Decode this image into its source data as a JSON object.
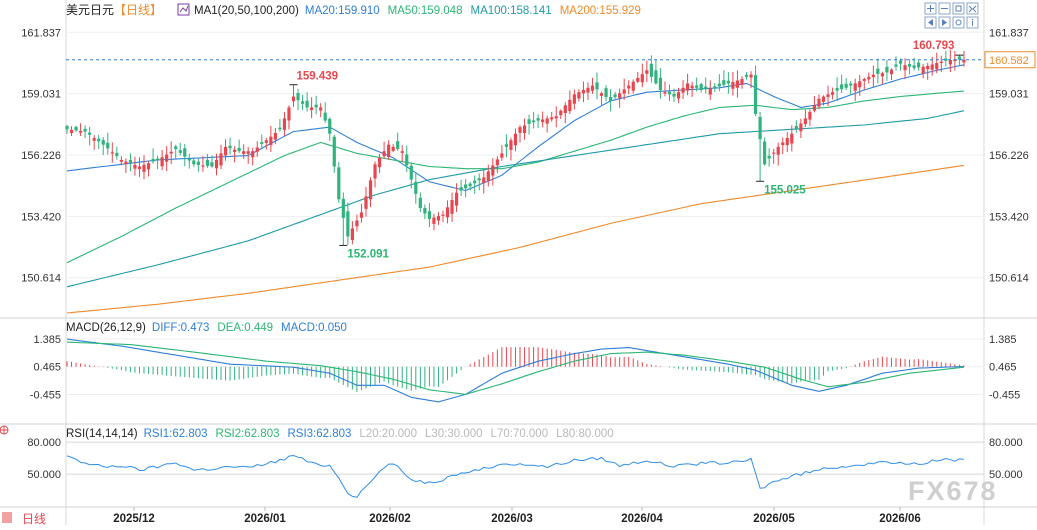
{
  "colors": {
    "up": "#e8464f",
    "down": "#31b37e",
    "ma20": "#2f7fd6",
    "ma50": "#2bb673",
    "ma100": "#1e9aa8",
    "ma200": "#ee8a2b",
    "diff": "#2f7fd6",
    "dea": "#2bb673",
    "rsi": "#2f8fe8",
    "label_red": "#e8464f",
    "label_green": "#2bb673",
    "axis_text": "#333333",
    "title_blue": "#2f7fd6",
    "title_orange": "#ee8a2b"
  },
  "header": {
    "symbol": "美元日元",
    "period": "【日线】",
    "ma_name": "MA1(20,50,100,200)",
    "ma20_label": "MA20:159.910",
    "ma50_label": "MA50:159.048",
    "ma100_label": "MA100:158.141",
    "ma200_label": "MA200:155.929",
    "toolbar_icons": [
      "zoom-in-icon",
      "zoom-out-icon",
      "fit-screen-icon",
      "expand-icon",
      "shift-left-icon",
      "shift-right-icon",
      "settings-icon",
      "info-icon"
    ]
  },
  "macd_header": {
    "name": "MACD(26,12,9)",
    "diff": "DIFF:0.473",
    "dea": "DEA:0.449",
    "macd": "MACD:0.050"
  },
  "rsi_header": {
    "name": "RSI(14,14,14)",
    "rsi1": "RSI1:62.803",
    "rsi2": "RSI2:62.803",
    "rsi3": "RSI3:62.803",
    "l20": "L20:20.000",
    "l30": "L30:30.000",
    "l70": "L70:70.000",
    "l80": "L80:80.000"
  },
  "watermark": "FX678",
  "bottom_left": "日线",
  "chart_data": [
    {
      "type": "candlestick",
      "name": "price",
      "y_ticks": [
        161.837,
        159.031,
        156.226,
        153.42,
        150.614
      ],
      "ylim": [
        149.0,
        162.4
      ],
      "x_labels": [
        "2025/12",
        "2026/01",
        "2026/02",
        "2026/03",
        "2026/04",
        "2026/05",
        "2026/06"
      ],
      "last_price": "160.582",
      "annotations": [
        {
          "text": "159.439",
          "value": 159.439,
          "kind": "high",
          "index": 50
        },
        {
          "text": "152.091",
          "value": 152.091,
          "kind": "low",
          "index": 61
        },
        {
          "text": "155.025",
          "value": 155.025,
          "kind": "low",
          "index": 153
        },
        {
          "text": "160.793",
          "value": 160.793,
          "kind": "high",
          "index": 197
        }
      ],
      "anchors": [
        [
          0,
          157.4
        ],
        [
          4,
          157.3
        ],
        [
          8,
          156.7
        ],
        [
          12,
          156.0
        ],
        [
          16,
          155.7
        ],
        [
          20,
          156.0
        ],
        [
          24,
          156.5
        ],
        [
          28,
          155.8
        ],
        [
          32,
          155.7
        ],
        [
          35,
          156.6
        ],
        [
          38,
          156.4
        ],
        [
          41,
          156.4
        ],
        [
          44,
          156.9
        ],
        [
          47,
          157.4
        ],
        [
          50,
          158.9
        ],
        [
          53,
          158.4
        ],
        [
          56,
          158.4
        ],
        [
          58,
          157.2
        ],
        [
          60,
          154.2
        ],
        [
          62,
          152.5
        ],
        [
          65,
          153.6
        ],
        [
          68,
          155.8
        ],
        [
          71,
          156.7
        ],
        [
          74,
          156.4
        ],
        [
          76,
          155.1
        ],
        [
          78,
          153.8
        ],
        [
          80,
          153.3
        ],
        [
          83,
          153.5
        ],
        [
          86,
          154.5
        ],
        [
          89,
          154.8
        ],
        [
          92,
          155.2
        ],
        [
          96,
          156.3
        ],
        [
          100,
          157.5
        ],
        [
          104,
          157.8
        ],
        [
          108,
          158.0
        ],
        [
          112,
          159.0
        ],
        [
          116,
          159.4
        ],
        [
          120,
          158.7
        ],
        [
          124,
          159.4
        ],
        [
          128,
          160.1
        ],
        [
          131,
          159.2
        ],
        [
          134,
          158.9
        ],
        [
          137,
          159.5
        ],
        [
          140,
          159.2
        ],
        [
          143,
          159.3
        ],
        [
          146,
          159.5
        ],
        [
          149,
          159.7
        ],
        [
          151,
          159.9
        ],
        [
          152,
          158.1
        ],
        [
          154,
          155.8
        ],
        [
          157,
          156.6
        ],
        [
          160,
          157.2
        ],
        [
          163,
          157.9
        ],
        [
          166,
          158.8
        ],
        [
          169,
          159.1
        ],
        [
          172,
          159.3
        ],
        [
          175,
          159.6
        ],
        [
          178,
          159.9
        ],
        [
          181,
          160.0
        ],
        [
          184,
          160.4
        ],
        [
          187,
          160.2
        ],
        [
          190,
          160.3
        ],
        [
          193,
          160.5
        ],
        [
          196,
          160.6
        ],
        [
          198,
          160.58
        ]
      ],
      "ma_series": [
        {
          "name": "MA20",
          "anchors": [
            [
              0,
              155.5
            ],
            [
              20,
              156.0
            ],
            [
              40,
              156.2
            ],
            [
              50,
              157.3
            ],
            [
              58,
              157.5
            ],
            [
              64,
              156.8
            ],
            [
              72,
              156.1
            ],
            [
              80,
              155.0
            ],
            [
              88,
              154.6
            ],
            [
              96,
              155.3
            ],
            [
              104,
              156.6
            ],
            [
              112,
              157.8
            ],
            [
              120,
              158.7
            ],
            [
              128,
              159.1
            ],
            [
              136,
              159.2
            ],
            [
              144,
              159.3
            ],
            [
              150,
              159.5
            ],
            [
              156,
              158.9
            ],
            [
              162,
              158.4
            ],
            [
              168,
              158.6
            ],
            [
              176,
              159.2
            ],
            [
              184,
              159.7
            ],
            [
              192,
              160.1
            ],
            [
              198,
              160.35
            ]
          ]
        },
        {
          "name": "MA50",
          "anchors": [
            [
              0,
              151.3
            ],
            [
              12,
              152.5
            ],
            [
              24,
              153.8
            ],
            [
              36,
              155.0
            ],
            [
              48,
              156.2
            ],
            [
              56,
              156.8
            ],
            [
              64,
              156.3
            ],
            [
              72,
              156.0
            ],
            [
              80,
              155.7
            ],
            [
              88,
              155.6
            ],
            [
              96,
              155.6
            ],
            [
              104,
              155.9
            ],
            [
              112,
              156.4
            ],
            [
              120,
              156.9
            ],
            [
              128,
              157.5
            ],
            [
              136,
              158.0
            ],
            [
              144,
              158.4
            ],
            [
              152,
              158.5
            ],
            [
              160,
              158.3
            ],
            [
              168,
              158.4
            ],
            [
              176,
              158.7
            ],
            [
              184,
              158.9
            ],
            [
              192,
              159.05
            ],
            [
              198,
              159.15
            ]
          ]
        },
        {
          "name": "MA100",
          "anchors": [
            [
              0,
              150.2
            ],
            [
              20,
              151.2
            ],
            [
              40,
              152.3
            ],
            [
              56,
              153.5
            ],
            [
              68,
              154.4
            ],
            [
              80,
              155.1
            ],
            [
              96,
              155.7
            ],
            [
              112,
              156.2
            ],
            [
              128,
              156.7
            ],
            [
              144,
              157.2
            ],
            [
              160,
              157.4
            ],
            [
              176,
              157.6
            ],
            [
              190,
              157.9
            ],
            [
              198,
              158.25
            ]
          ]
        },
        {
          "name": "MA200",
          "anchors": [
            [
              0,
              149.0
            ],
            [
              20,
              149.4
            ],
            [
              40,
              149.9
            ],
            [
              60,
              150.5
            ],
            [
              80,
              151.1
            ],
            [
              100,
              152.0
            ],
            [
              120,
              153.1
            ],
            [
              140,
              154.0
            ],
            [
              160,
              154.6
            ],
            [
              180,
              155.2
            ],
            [
              198,
              155.75
            ]
          ]
        }
      ]
    },
    {
      "type": "macd",
      "name": "MACD",
      "y_ticks": [
        1.385,
        0.465,
        -0.455
      ],
      "ylim": [
        -1.3,
        1.55
      ],
      "diff_anchors": [
        [
          0,
          1.38
        ],
        [
          12,
          1.15
        ],
        [
          24,
          0.85
        ],
        [
          36,
          0.55
        ],
        [
          50,
          0.45
        ],
        [
          58,
          0.25
        ],
        [
          64,
          -0.15
        ],
        [
          70,
          -0.15
        ],
        [
          76,
          -0.55
        ],
        [
          82,
          -0.7
        ],
        [
          88,
          -0.45
        ],
        [
          96,
          0.25
        ],
        [
          104,
          0.65
        ],
        [
          112,
          0.9
        ],
        [
          118,
          1.05
        ],
        [
          124,
          1.1
        ],
        [
          130,
          0.95
        ],
        [
          138,
          0.75
        ],
        [
          146,
          0.55
        ],
        [
          152,
          0.35
        ],
        [
          160,
          -0.15
        ],
        [
          166,
          -0.35
        ],
        [
          172,
          -0.15
        ],
        [
          180,
          0.25
        ],
        [
          188,
          0.42
        ],
        [
          198,
          0.473
        ]
      ],
      "dea_anchors": [
        [
          0,
          1.28
        ],
        [
          14,
          1.2
        ],
        [
          28,
          0.95
        ],
        [
          44,
          0.65
        ],
        [
          56,
          0.5
        ],
        [
          64,
          0.3
        ],
        [
          72,
          0.05
        ],
        [
          80,
          -0.3
        ],
        [
          88,
          -0.45
        ],
        [
          96,
          -0.1
        ],
        [
          104,
          0.3
        ],
        [
          112,
          0.65
        ],
        [
          120,
          0.9
        ],
        [
          128,
          0.95
        ],
        [
          136,
          0.85
        ],
        [
          146,
          0.65
        ],
        [
          154,
          0.45
        ],
        [
          162,
          0.05
        ],
        [
          168,
          -0.2
        ],
        [
          176,
          -0.05
        ],
        [
          186,
          0.25
        ],
        [
          198,
          0.449
        ]
      ]
    },
    {
      "type": "line",
      "name": "RSI",
      "y_ticks": [
        80,
        50
      ],
      "ylim": [
        20,
        82
      ],
      "anchors": [
        [
          0,
          68
        ],
        [
          4,
          60
        ],
        [
          8,
          57
        ],
        [
          12,
          58
        ],
        [
          16,
          54
        ],
        [
          20,
          57
        ],
        [
          24,
          61
        ],
        [
          28,
          54
        ],
        [
          32,
          55
        ],
        [
          36,
          57
        ],
        [
          40,
          56
        ],
        [
          44,
          60
        ],
        [
          48,
          64
        ],
        [
          50,
          68
        ],
        [
          54,
          60
        ],
        [
          58,
          58
        ],
        [
          60,
          47
        ],
        [
          62,
          33
        ],
        [
          64,
          28
        ],
        [
          66,
          38
        ],
        [
          70,
          57
        ],
        [
          72,
          60
        ],
        [
          76,
          45
        ],
        [
          80,
          42
        ],
        [
          84,
          46
        ],
        [
          88,
          52
        ],
        [
          94,
          57
        ],
        [
          100,
          60
        ],
        [
          106,
          57
        ],
        [
          112,
          63
        ],
        [
          118,
          65
        ],
        [
          122,
          58
        ],
        [
          128,
          63
        ],
        [
          134,
          57
        ],
        [
          140,
          60
        ],
        [
          148,
          61
        ],
        [
          151,
          64
        ],
        [
          153,
          36
        ],
        [
          156,
          43
        ],
        [
          162,
          50
        ],
        [
          168,
          56
        ],
        [
          176,
          59
        ],
        [
          182,
          61
        ],
        [
          188,
          60
        ],
        [
          194,
          64
        ],
        [
          198,
          62.8
        ]
      ]
    }
  ]
}
